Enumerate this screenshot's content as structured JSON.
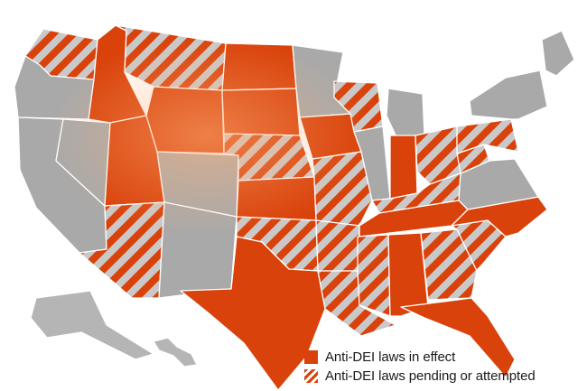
{
  "map": {
    "subject": "United States state map of anti-DEI legislation",
    "colors": {
      "in_effect": "#d9420b",
      "pending_stripe": "#d9420b",
      "stripe_gap": "#c9c9c9",
      "no_action": "#a9a9a9",
      "border": "#ffffff"
    },
    "states": [
      {
        "name": "Washington",
        "status": "pending"
      },
      {
        "name": "Oregon",
        "status": "none"
      },
      {
        "name": "California",
        "status": "none"
      },
      {
        "name": "Nevada",
        "status": "none"
      },
      {
        "name": "Idaho",
        "status": "in_effect"
      },
      {
        "name": "Montana",
        "status": "pending"
      },
      {
        "name": "Wyoming",
        "status": "in_effect"
      },
      {
        "name": "Utah",
        "status": "in_effect"
      },
      {
        "name": "Arizona",
        "status": "pending"
      },
      {
        "name": "Colorado",
        "status": "none"
      },
      {
        "name": "New Mexico",
        "status": "none"
      },
      {
        "name": "North Dakota",
        "status": "in_effect"
      },
      {
        "name": "South Dakota",
        "status": "in_effect"
      },
      {
        "name": "Nebraska",
        "status": "pending"
      },
      {
        "name": "Kansas",
        "status": "in_effect"
      },
      {
        "name": "Oklahoma",
        "status": "pending"
      },
      {
        "name": "Texas",
        "status": "in_effect"
      },
      {
        "name": "Minnesota",
        "status": "none"
      },
      {
        "name": "Iowa",
        "status": "in_effect"
      },
      {
        "name": "Missouri",
        "status": "pending"
      },
      {
        "name": "Arkansas",
        "status": "pending"
      },
      {
        "name": "Louisiana",
        "status": "pending"
      },
      {
        "name": "Wisconsin",
        "status": "pending"
      },
      {
        "name": "Illinois",
        "status": "none"
      },
      {
        "name": "Michigan",
        "status": "none"
      },
      {
        "name": "Indiana",
        "status": "in_effect"
      },
      {
        "name": "Ohio",
        "status": "pending"
      },
      {
        "name": "Kentucky",
        "status": "pending"
      },
      {
        "name": "Tennessee",
        "status": "in_effect"
      },
      {
        "name": "Mississippi",
        "status": "pending"
      },
      {
        "name": "Alabama",
        "status": "in_effect"
      },
      {
        "name": "Georgia",
        "status": "pending"
      },
      {
        "name": "Florida",
        "status": "in_effect"
      },
      {
        "name": "South Carolina",
        "status": "pending"
      },
      {
        "name": "North Carolina",
        "status": "in_effect"
      },
      {
        "name": "Virginia",
        "status": "none"
      },
      {
        "name": "West Virginia",
        "status": "pending"
      },
      {
        "name": "Pennsylvania",
        "status": "pending"
      },
      {
        "name": "New York",
        "status": "none"
      },
      {
        "name": "Maine",
        "status": "none"
      },
      {
        "name": "Alaska",
        "status": "none"
      },
      {
        "name": "Hawaii",
        "status": "none"
      }
    ]
  },
  "legend": {
    "in_effect_label": "Anti-DEI laws in effect",
    "pending_label": "Anti-DEI laws pending or attempted"
  }
}
